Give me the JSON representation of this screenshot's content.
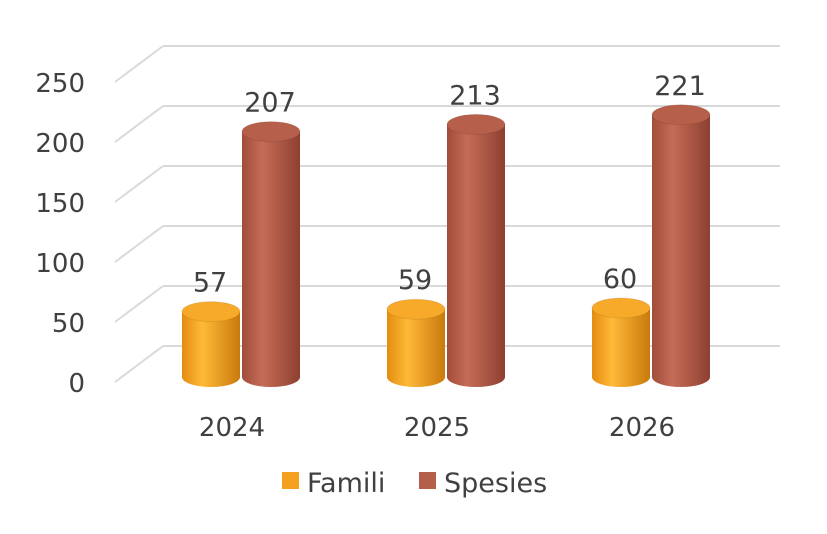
{
  "chart_data": {
    "type": "bar",
    "style": "3d-cylinder",
    "categories": [
      "2024",
      "2025",
      "2026"
    ],
    "series": [
      {
        "name": "Famili",
        "values": [
          57,
          59,
          60
        ],
        "color": "#F4A11E"
      },
      {
        "name": "Spesies",
        "values": [
          207,
          213,
          221
        ],
        "color": "#B55E4A"
      }
    ],
    "y_ticks": [
      "0",
      "50",
      "100",
      "150",
      "200",
      "250"
    ],
    "ylim": [
      0,
      250
    ],
    "grid": true,
    "legend": "bottom",
    "data_labels": true
  }
}
